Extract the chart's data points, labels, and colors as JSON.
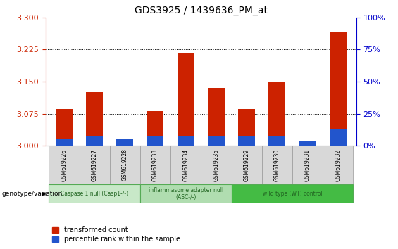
{
  "title": "GDS3925 / 1439636_PM_at",
  "samples": [
    "GSM619226",
    "GSM619227",
    "GSM619228",
    "GSM619233",
    "GSM619234",
    "GSM619235",
    "GSM619229",
    "GSM619230",
    "GSM619231",
    "GSM619232"
  ],
  "transformed_count": [
    3.085,
    3.125,
    3.015,
    3.08,
    3.215,
    3.135,
    3.085,
    3.15,
    3.01,
    3.265
  ],
  "percentile_rank": [
    5,
    8,
    5,
    8,
    7,
    8,
    8,
    8,
    4,
    13
  ],
  "ylim_left": [
    3.0,
    3.3
  ],
  "yticks_left": [
    3.0,
    3.075,
    3.15,
    3.225,
    3.3
  ],
  "ylim_right": [
    0,
    100
  ],
  "yticks_right": [
    0,
    25,
    50,
    75,
    100
  ],
  "groups": [
    {
      "label": "Caspase 1 null (Casp1-/-)",
      "indices": [
        0,
        1,
        2
      ],
      "color": "#c8e8c8"
    },
    {
      "label": "inflammasome adapter null\n(ASC-/-)",
      "indices": [
        3,
        4,
        5
      ],
      "color": "#b0ddb0"
    },
    {
      "label": "wild type (WT) control",
      "indices": [
        6,
        7,
        8,
        9
      ],
      "color": "#44bb44"
    }
  ],
  "bar_width": 0.55,
  "bar_color_red": "#cc2200",
  "bar_color_blue": "#2255cc",
  "bg_color": "#ffffff",
  "left_tick_color": "#cc2200",
  "right_tick_color": "#0000cc",
  "legend_red_label": "transformed count",
  "legend_blue_label": "percentile rank within the sample",
  "sample_box_color": "#d8d8d8",
  "sample_box_edge": "#aaaaaa"
}
